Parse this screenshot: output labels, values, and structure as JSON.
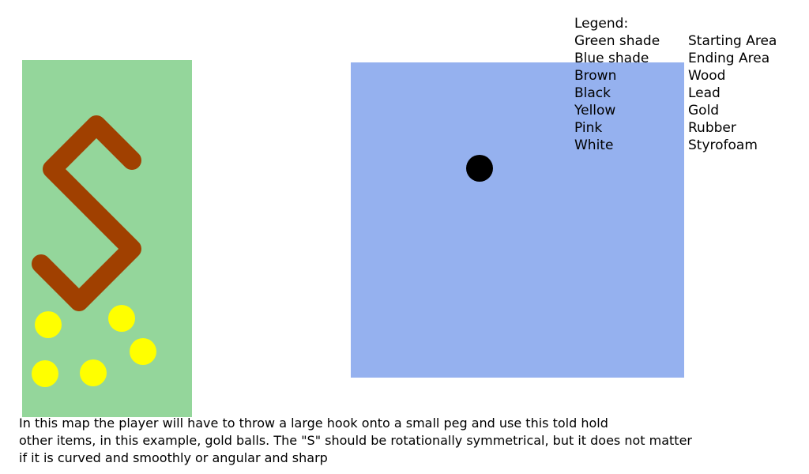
{
  "colors": {
    "starting_area": "#94d69b",
    "ending_area": "#95b1ef",
    "wood": "#a04000",
    "lead": "#000000",
    "gold": "#ffff00",
    "background": "#ffffff"
  },
  "legend": {
    "title": "Legend:",
    "items": [
      {
        "key": "Green shade",
        "value": "Starting Area"
      },
      {
        "key": "Blue shade",
        "value": "Ending Area"
      },
      {
        "key": "Brown",
        "value": "Wood"
      },
      {
        "key": "Black",
        "value": "Lead"
      },
      {
        "key": "Yellow",
        "value": "Gold"
      },
      {
        "key": "Pink",
        "value": "Rubber"
      },
      {
        "key": "White",
        "value": "Styrofoam"
      }
    ]
  },
  "caption": {
    "lines": [
      "In this map the player will have to throw a large hook onto a small peg and use this told hold",
      "other items, in this example, gold balls. The \"S\" should be rotationally symmetrical, but it does not matter",
      "if it is curved and smoothly or angular and sharp"
    ]
  }
}
